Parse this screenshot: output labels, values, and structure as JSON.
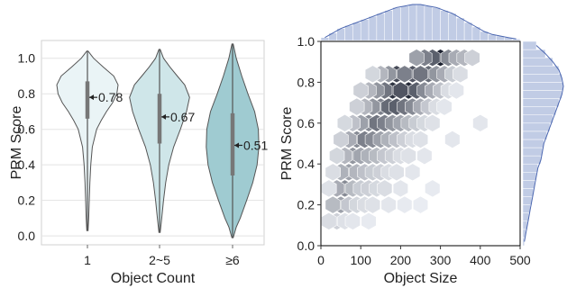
{
  "chart_data": [
    {
      "type": "violin",
      "xlabel": "Object Count",
      "ylabel": "PRM Score",
      "ylim": [
        -0.05,
        1.1
      ],
      "yticks": [
        "0.0",
        "0.2",
        "0.4",
        "0.6",
        "0.8",
        "1.0"
      ],
      "grid": true,
      "categories": [
        "1",
        "2~5",
        "≥6"
      ],
      "colors": [
        "#eaf4f6",
        "#cfe6e9",
        "#9fcbd1"
      ],
      "violins": [
        {
          "min": 0.03,
          "max": 1.04,
          "q1": 0.66,
          "median": 0.78,
          "q3": 0.87,
          "density": [
            [
              0.03,
              0.02
            ],
            [
              0.1,
              0.04
            ],
            [
              0.2,
              0.06
            ],
            [
              0.3,
              0.08
            ],
            [
              0.4,
              0.11
            ],
            [
              0.5,
              0.16
            ],
            [
              0.6,
              0.3
            ],
            [
              0.65,
              0.45
            ],
            [
              0.7,
              0.62
            ],
            [
              0.75,
              0.82
            ],
            [
              0.8,
              0.96
            ],
            [
              0.85,
              1.0
            ],
            [
              0.9,
              0.86
            ],
            [
              0.95,
              0.52
            ],
            [
              1.0,
              0.2
            ],
            [
              1.04,
              0.02
            ]
          ]
        },
        {
          "min": 0.02,
          "max": 1.05,
          "q1": 0.52,
          "median": 0.67,
          "q3": 0.8,
          "density": [
            [
              0.02,
              0.02
            ],
            [
              0.1,
              0.07
            ],
            [
              0.2,
              0.13
            ],
            [
              0.3,
              0.2
            ],
            [
              0.4,
              0.3
            ],
            [
              0.5,
              0.46
            ],
            [
              0.6,
              0.68
            ],
            [
              0.7,
              0.88
            ],
            [
              0.78,
              0.98
            ],
            [
              0.85,
              0.82
            ],
            [
              0.9,
              0.58
            ],
            [
              0.95,
              0.34
            ],
            [
              1.0,
              0.13
            ],
            [
              1.05,
              0.02
            ]
          ]
        },
        {
          "min": -0.01,
          "max": 1.08,
          "q1": 0.34,
          "median": 0.51,
          "q3": 0.69,
          "density": [
            [
              -0.01,
              0.02
            ],
            [
              0.05,
              0.12
            ],
            [
              0.1,
              0.25
            ],
            [
              0.2,
              0.46
            ],
            [
              0.3,
              0.66
            ],
            [
              0.4,
              0.8
            ],
            [
              0.5,
              0.86
            ],
            [
              0.6,
              0.84
            ],
            [
              0.7,
              0.72
            ],
            [
              0.8,
              0.5
            ],
            [
              0.9,
              0.3
            ],
            [
              1.0,
              0.12
            ],
            [
              1.08,
              0.02
            ]
          ]
        }
      ],
      "annotations": [
        "0.78",
        "0.67",
        "0.51"
      ]
    },
    {
      "type": "hexbin",
      "xlabel": "Object Size",
      "ylabel": "PRM Score",
      "xlim": [
        0,
        500
      ],
      "ylim": [
        0.0,
        1.0
      ],
      "xticks": [
        "0",
        "100",
        "200",
        "300",
        "400",
        "500"
      ],
      "yticks": [
        "0.0",
        "0.2",
        "0.4",
        "0.6",
        "0.8",
        "1.0"
      ],
      "colormap": [
        "#f4f7fc",
        "#1a1f2e"
      ],
      "hex_cells": [
        [
          300,
          0.92,
          1.0
        ],
        [
          280,
          0.92,
          0.7
        ],
        [
          260,
          0.92,
          0.55
        ],
        [
          320,
          0.92,
          0.5
        ],
        [
          340,
          0.92,
          0.35
        ],
        [
          240,
          0.92,
          0.4
        ],
        [
          360,
          0.92,
          0.3
        ],
        [
          380,
          0.92,
          0.18
        ],
        [
          190,
          0.84,
          0.8
        ],
        [
          230,
          0.84,
          0.75
        ],
        [
          270,
          0.84,
          0.65
        ],
        [
          250,
          0.84,
          0.6
        ],
        [
          210,
          0.84,
          0.55
        ],
        [
          290,
          0.84,
          0.45
        ],
        [
          170,
          0.84,
          0.45
        ],
        [
          310,
          0.84,
          0.35
        ],
        [
          150,
          0.84,
          0.3
        ],
        [
          330,
          0.84,
          0.2
        ],
        [
          130,
          0.84,
          0.15
        ],
        [
          350,
          0.84,
          0.12
        ],
        [
          180,
          0.76,
          0.9
        ],
        [
          220,
          0.76,
          0.95
        ],
        [
          200,
          0.76,
          0.75
        ],
        [
          240,
          0.76,
          0.7
        ],
        [
          160,
          0.76,
          0.6
        ],
        [
          260,
          0.76,
          0.5
        ],
        [
          140,
          0.76,
          0.45
        ],
        [
          280,
          0.76,
          0.35
        ],
        [
          120,
          0.76,
          0.3
        ],
        [
          300,
          0.76,
          0.25
        ],
        [
          100,
          0.76,
          0.18
        ],
        [
          320,
          0.76,
          0.12
        ],
        [
          340,
          0.76,
          0.08
        ],
        [
          150,
          0.68,
          0.55
        ],
        [
          170,
          0.68,
          0.65
        ],
        [
          190,
          0.68,
          0.7
        ],
        [
          210,
          0.68,
          0.6
        ],
        [
          230,
          0.68,
          0.5
        ],
        [
          130,
          0.68,
          0.45
        ],
        [
          250,
          0.68,
          0.35
        ],
        [
          110,
          0.68,
          0.3
        ],
        [
          270,
          0.68,
          0.22
        ],
        [
          90,
          0.68,
          0.18
        ],
        [
          290,
          0.68,
          0.12
        ],
        [
          310,
          0.68,
          0.08
        ],
        [
          120,
          0.6,
          0.5
        ],
        [
          140,
          0.6,
          0.6
        ],
        [
          160,
          0.6,
          0.55
        ],
        [
          180,
          0.6,
          0.45
        ],
        [
          100,
          0.6,
          0.4
        ],
        [
          200,
          0.6,
          0.38
        ],
        [
          80,
          0.6,
          0.25
        ],
        [
          220,
          0.6,
          0.28
        ],
        [
          240,
          0.6,
          0.2
        ],
        [
          60,
          0.6,
          0.14
        ],
        [
          260,
          0.6,
          0.14
        ],
        [
          280,
          0.6,
          0.1
        ],
        [
          400,
          0.6,
          0.08
        ],
        [
          90,
          0.52,
          0.5
        ],
        [
          110,
          0.52,
          0.55
        ],
        [
          130,
          0.52,
          0.5
        ],
        [
          150,
          0.52,
          0.4
        ],
        [
          70,
          0.52,
          0.35
        ],
        [
          170,
          0.52,
          0.32
        ],
        [
          190,
          0.52,
          0.25
        ],
        [
          50,
          0.52,
          0.18
        ],
        [
          210,
          0.52,
          0.18
        ],
        [
          230,
          0.52,
          0.12
        ],
        [
          250,
          0.52,
          0.1
        ],
        [
          330,
          0.52,
          0.08
        ],
        [
          80,
          0.44,
          0.45
        ],
        [
          100,
          0.44,
          0.38
        ],
        [
          60,
          0.44,
          0.3
        ],
        [
          120,
          0.44,
          0.32
        ],
        [
          140,
          0.44,
          0.28
        ],
        [
          160,
          0.44,
          0.22
        ],
        [
          40,
          0.44,
          0.15
        ],
        [
          180,
          0.44,
          0.18
        ],
        [
          200,
          0.44,
          0.12
        ],
        [
          220,
          0.44,
          0.1
        ],
        [
          260,
          0.44,
          0.08
        ],
        [
          70,
          0.36,
          0.4
        ],
        [
          50,
          0.36,
          0.32
        ],
        [
          90,
          0.36,
          0.3
        ],
        [
          110,
          0.36,
          0.25
        ],
        [
          130,
          0.36,
          0.2
        ],
        [
          150,
          0.36,
          0.18
        ],
        [
          30,
          0.36,
          0.12
        ],
        [
          170,
          0.36,
          0.12
        ],
        [
          190,
          0.36,
          0.1
        ],
        [
          230,
          0.36,
          0.08
        ],
        [
          60,
          0.28,
          0.5
        ],
        [
          40,
          0.28,
          0.35
        ],
        [
          80,
          0.28,
          0.28
        ],
        [
          100,
          0.28,
          0.2
        ],
        [
          120,
          0.28,
          0.18
        ],
        [
          140,
          0.28,
          0.14
        ],
        [
          20,
          0.28,
          0.1
        ],
        [
          160,
          0.28,
          0.12
        ],
        [
          200,
          0.28,
          0.08
        ],
        [
          280,
          0.28,
          0.06
        ],
        [
          50,
          0.2,
          0.4
        ],
        [
          30,
          0.2,
          0.28
        ],
        [
          70,
          0.2,
          0.22
        ],
        [
          90,
          0.2,
          0.15
        ],
        [
          110,
          0.2,
          0.12
        ],
        [
          130,
          0.2,
          0.1
        ],
        [
          170,
          0.2,
          0.08
        ],
        [
          210,
          0.2,
          0.06
        ],
        [
          250,
          0.2,
          0.05
        ],
        [
          40,
          0.12,
          0.18
        ],
        [
          20,
          0.12,
          0.12
        ],
        [
          60,
          0.12,
          0.1
        ],
        [
          80,
          0.12,
          0.08
        ],
        [
          120,
          0.12,
          0.06
        ]
      ],
      "top_histogram": [
        2,
        5,
        8,
        10,
        12,
        14,
        16,
        18,
        20,
        22,
        23,
        24,
        24,
        23,
        22,
        20,
        18,
        15,
        12,
        9,
        6,
        4,
        3,
        2,
        1
      ],
      "right_histogram": [
        1,
        2,
        3,
        4,
        5,
        6,
        7,
        8,
        9,
        10,
        12,
        13,
        14,
        16,
        18,
        20,
        22,
        24,
        26,
        27,
        26,
        24,
        20,
        15,
        9
      ],
      "marginal_color": "#8ea3cf"
    }
  ]
}
